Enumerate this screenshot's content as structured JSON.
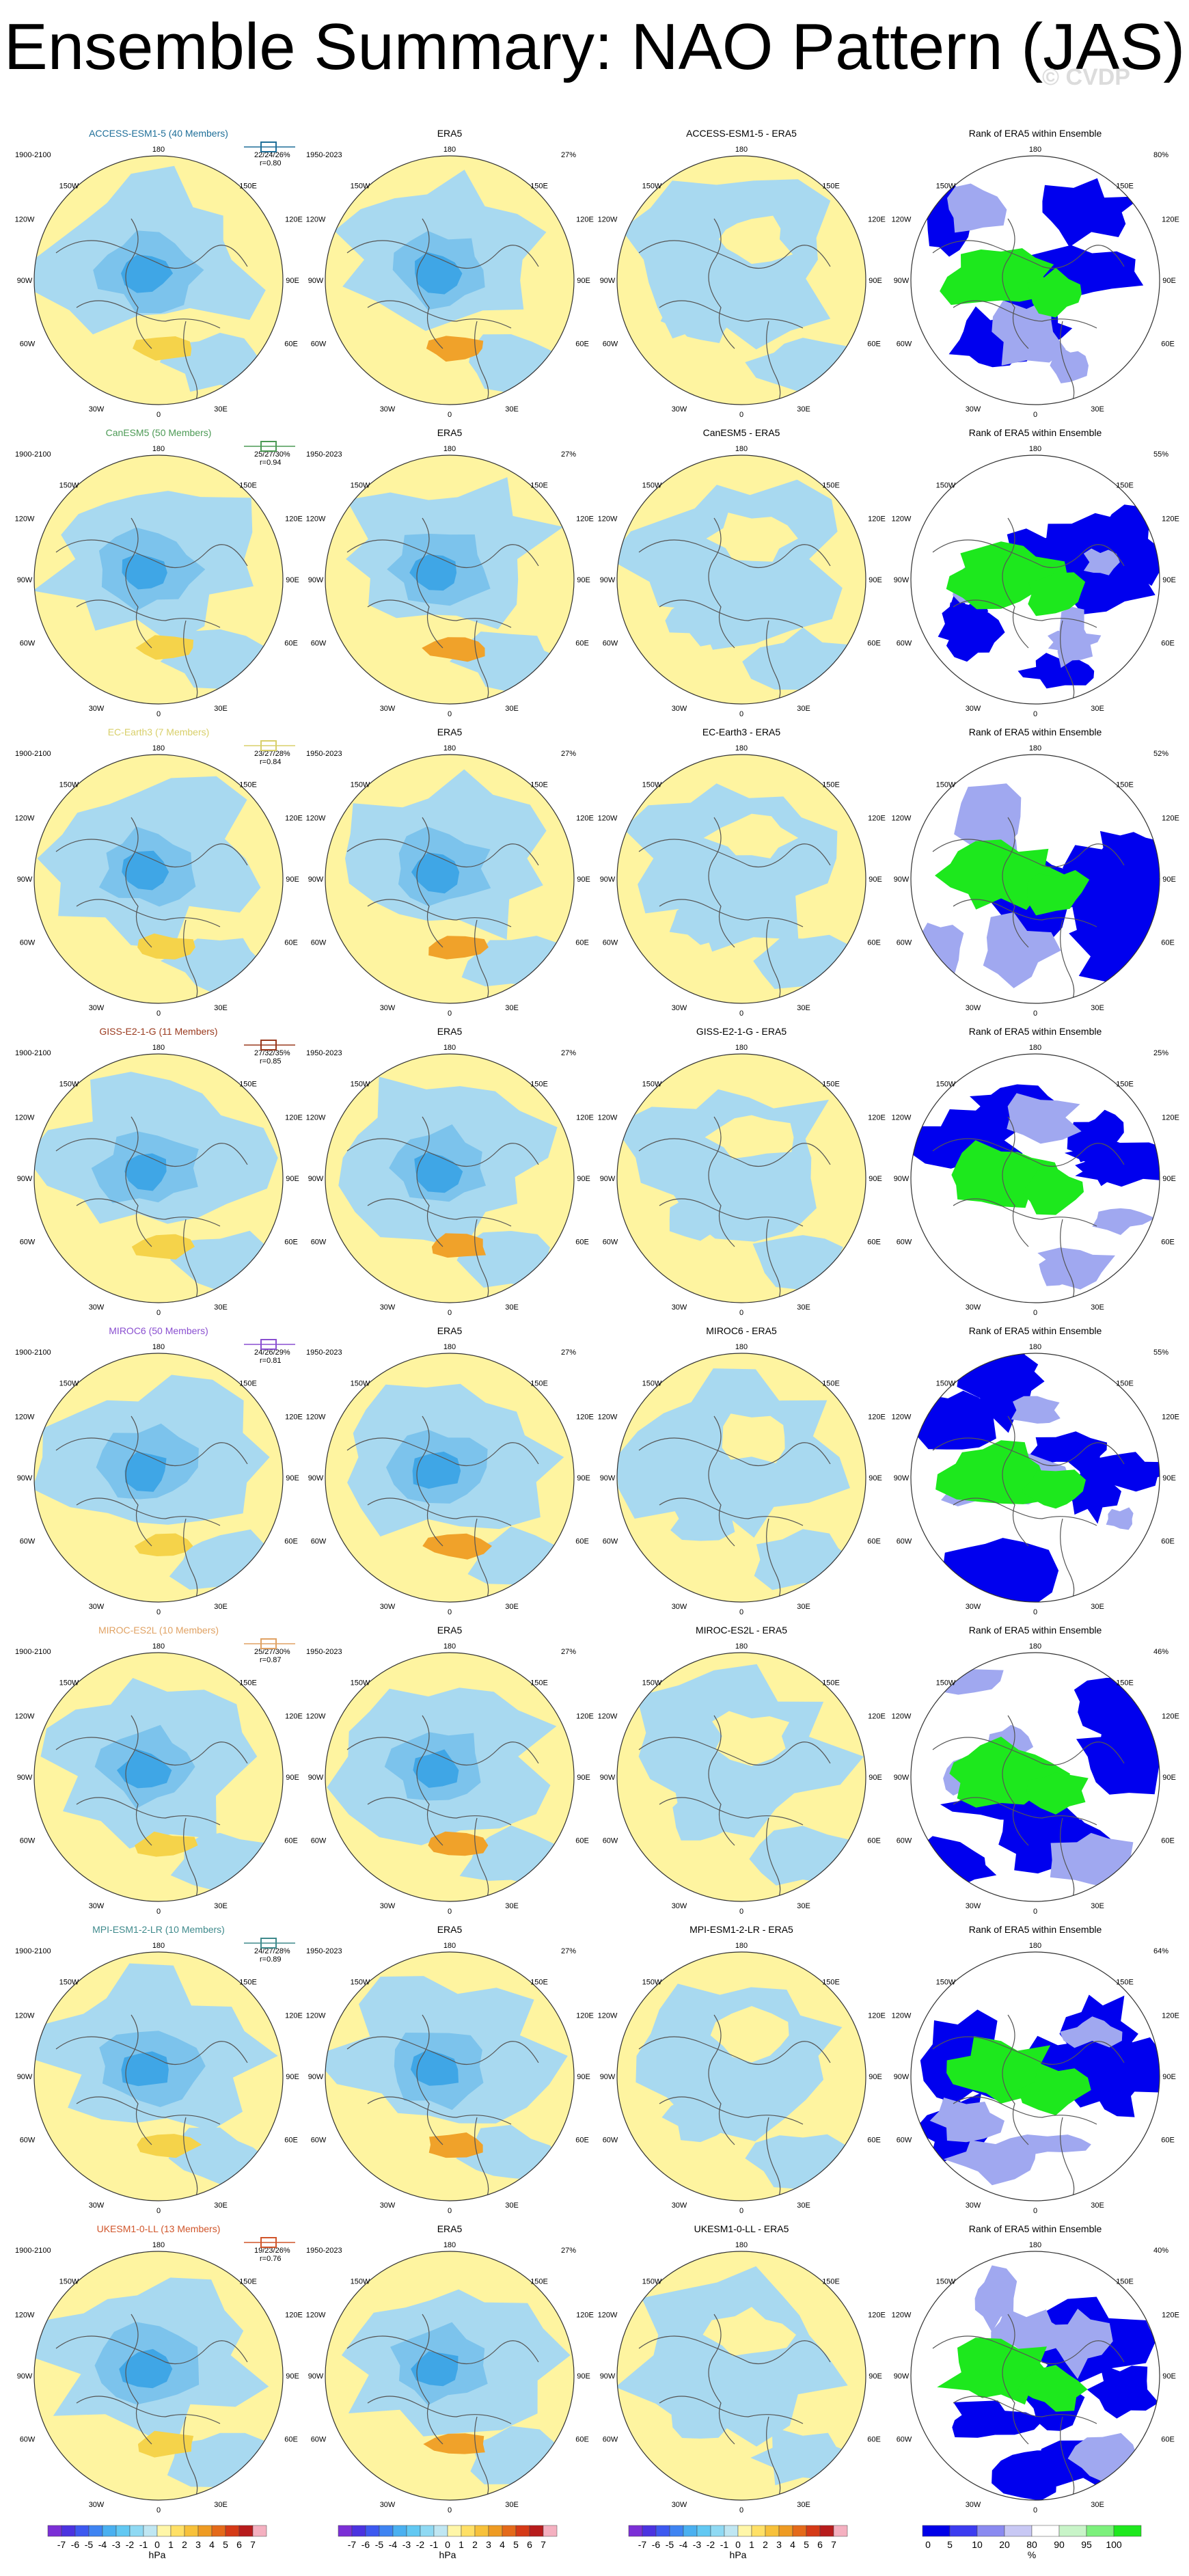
{
  "title": "Ensemble Summary: NAO Pattern (JAS)",
  "watermark": "© CVDP",
  "column_header_era5": "ERA5",
  "column_header_rank": "Rank of ERA5 within Ensemble",
  "period_model": "1900-2100",
  "period_obs": "1950-2023",
  "obs_pct": "27%",
  "lon_labels": {
    "top": "180",
    "tl": "150W",
    "tr": "150E",
    "ul": "120W",
    "ur": "120E",
    "l": "90W",
    "r": "90E",
    "ll": "60W",
    "lr": "60E",
    "bl": "30W",
    "br": "30E",
    "bottom": "0"
  },
  "models": [
    {
      "name": "ACCESS-ESM1-5 (40 Members)",
      "short": "ACCESS-ESM1-5",
      "color": "#1f6f99",
      "pct": "22/24/26%",
      "r": "r=0.80",
      "rank_pct": "80%"
    },
    {
      "name": "CanESM5 (50 Members)",
      "short": "CanESM5",
      "color": "#4c9a55",
      "pct": "25/27/30%",
      "r": "r=0.94",
      "rank_pct": "55%"
    },
    {
      "name": "EC-Earth3 (7 Members)",
      "short": "EC-Earth3",
      "color": "#d8cf6a",
      "pct": "23/27/28%",
      "r": "r=0.84",
      "rank_pct": "52%"
    },
    {
      "name": "GISS-E2-1-G (11 Members)",
      "short": "GISS-E2-1-G",
      "color": "#9a3a1e",
      "pct": "27/32/35%",
      "r": "r=0.85",
      "rank_pct": "25%"
    },
    {
      "name": "MIROC6 (50 Members)",
      "short": "MIROC6",
      "color": "#8a4fd0",
      "pct": "24/26/29%",
      "r": "r=0.81",
      "rank_pct": "55%"
    },
    {
      "name": "MIROC-ES2L (10 Members)",
      "short": "MIROC-ES2L",
      "color": "#e0a264",
      "pct": "25/27/30%",
      "r": "r=0.87",
      "rank_pct": "46%"
    },
    {
      "name": "MPI-ESM1-2-LR (10 Members)",
      "short": "MPI-ESM1-2-LR",
      "color": "#3f8a8c",
      "pct": "24/27/28%",
      "r": "r=0.89",
      "rank_pct": "64%"
    },
    {
      "name": "UKESM1-0-LL (13 Members)",
      "short": "UKESM1-0-LL",
      "color": "#d0552a",
      "pct": "19/23/26%",
      "r": "r=0.76",
      "rank_pct": "40%"
    }
  ],
  "diff_suffix": " - ERA5",
  "colorbar_hpa": {
    "labels": [
      "-7",
      "-6",
      "-5",
      "-4",
      "-3",
      "-2",
      "-1",
      "0",
      "1",
      "2",
      "3",
      "4",
      "5",
      "6",
      "7"
    ],
    "colors": [
      "#7b2fd6",
      "#4b33e0",
      "#3d59f0",
      "#3f84f2",
      "#4ab0f0",
      "#62c8f2",
      "#8fd9f3",
      "#bfe6f2",
      "#fff6a8",
      "#ffe066",
      "#f7c13a",
      "#ee9b23",
      "#e46a1a",
      "#d53a17",
      "#b71c1c",
      "#f4b0c0"
    ],
    "unit": "hPa"
  },
  "colorbar_rank": {
    "labels": [
      "0",
      "5",
      "10",
      "20",
      "80",
      "90",
      "95",
      "100"
    ],
    "colors": [
      "#0000e8",
      "#3c3cf0",
      "#8a8af0",
      "#c8c8f4",
      "#ffffff",
      "#c8f4c8",
      "#7cf07c",
      "#1ee81e"
    ],
    "unit": "%"
  },
  "palette": {
    "positive": "#fef4a0",
    "negative": "#a8d9f0",
    "neg_mid": "#7cc3ec",
    "neg_strong": "#3fa6e6",
    "pos_mid": "#f5d34a",
    "pos_strong": "#f0a22a",
    "rank_low": "#0000ee",
    "rank_mid": "#a0a8f0",
    "rank_high": "#1de81d",
    "coast": "#555555"
  }
}
